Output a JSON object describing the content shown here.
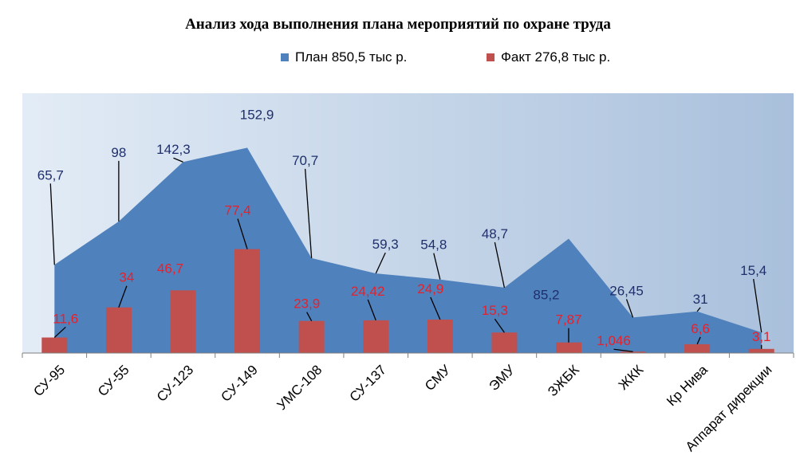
{
  "chart_data": {
    "type": "area+bar",
    "title": "Анализ хода выполнения плана мероприятий по охране труда",
    "categories": [
      "СУ-95",
      "СУ-55",
      "СУ-123",
      "СУ-149",
      "УМС-108",
      "СУ-137",
      "СМУ",
      "ЭМУ",
      "ЗЖБК",
      "ЖКК",
      "Кр Нива",
      "Аппарат дирекции"
    ],
    "series": [
      {
        "name": "План 850,5 тыс р.",
        "kind": "area",
        "color": "#4F81BD",
        "values": [
          65.7,
          98,
          142.3,
          152.9,
          70.7,
          59.3,
          54.8,
          48.7,
          85.2,
          26.45,
          31,
          15.4
        ],
        "labels": [
          "65,7",
          "98",
          "142,3",
          "152,9",
          "70,7",
          "59,3",
          "54,8",
          "48,7",
          "85,2",
          "26,45",
          "31",
          "15,4"
        ],
        "label_color": "#1F2F6B"
      },
      {
        "name": "Факт 276,8 тыс р.",
        "kind": "bar",
        "color": "#C0504D",
        "values": [
          11.6,
          34,
          46.7,
          77.4,
          23.9,
          24.42,
          24.9,
          15.3,
          7.87,
          1.046,
          6.6,
          3.1
        ],
        "labels": [
          "11,6",
          "34",
          "46,7",
          "77,4",
          "23,9",
          "24,42",
          "24,9",
          "15,3",
          "7,87",
          "1,046",
          "6,6",
          "3,1"
        ],
        "label_color": "#E8202A"
      }
    ],
    "ylim": [
      0,
      165
    ],
    "grid": false,
    "legend_position": "top"
  }
}
